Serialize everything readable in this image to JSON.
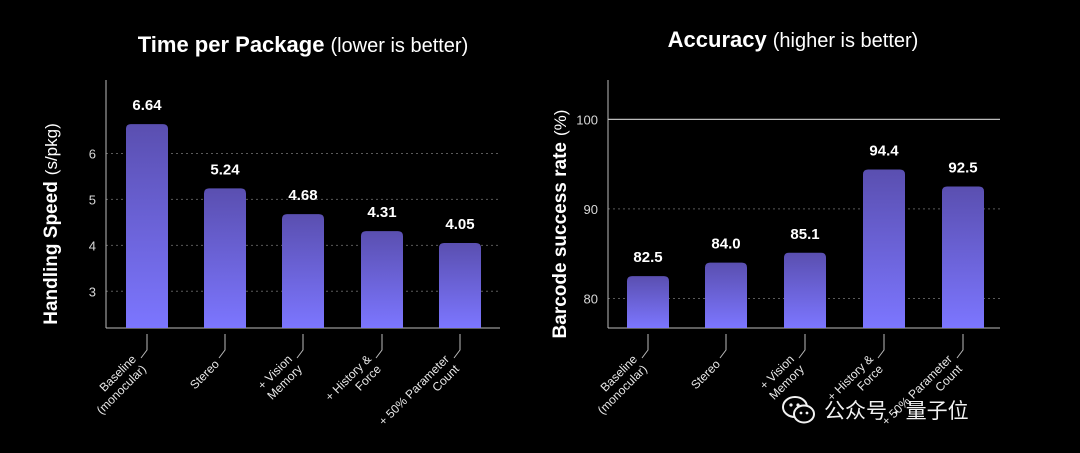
{
  "chart_data": [
    {
      "type": "bar",
      "title": "Time per Package",
      "subtitle": "(lower is better)",
      "ylabel": "Handling Speed",
      "ylabel_unit": "(s/pkg)",
      "ylim": [
        2.2,
        7.6
      ],
      "yticks": [
        3,
        4,
        5,
        6
      ],
      "grid": "dotted",
      "categories": [
        [
          "Baseline",
          "(monocular)"
        ],
        [
          "Stereo"
        ],
        [
          "+ Vision",
          "Memory"
        ],
        [
          "+ History &",
          "Force"
        ],
        [
          "+ 50% Parameter",
          "Count"
        ]
      ],
      "values": [
        6.64,
        5.24,
        4.68,
        4.31,
        4.05
      ],
      "value_labels": [
        "6.64",
        "5.24",
        "4.68",
        "4.31",
        "4.05"
      ]
    },
    {
      "type": "bar",
      "title": "Accuracy",
      "subtitle": "(higher is better)",
      "ylabel": "Barcode success rate",
      "ylabel_unit": "(%)",
      "ylim": [
        76.7,
        104.4
      ],
      "yticks": [
        80,
        90,
        100
      ],
      "grid": "dotted",
      "reference_line": 100,
      "categories": [
        [
          "Baseline",
          "(monocular)"
        ],
        [
          "Stereo"
        ],
        [
          "+ Vision",
          "Memory"
        ],
        [
          "+ History &",
          "Force"
        ],
        [
          "+ 50% Parameter",
          "Count"
        ]
      ],
      "values": [
        82.5,
        84.0,
        85.1,
        94.4,
        92.5
      ],
      "value_labels": [
        "82.5",
        "84.0",
        "85.1",
        "94.4",
        "92.5"
      ]
    }
  ],
  "watermark": {
    "text": "公众号 · 量子位",
    "icon": "wechat-icon"
  },
  "colors": {
    "bar_top": "#5a4fb0",
    "bar_bottom": "#7c76ff",
    "axis": "#bbbbbb",
    "grid": "#5a5a5a"
  }
}
